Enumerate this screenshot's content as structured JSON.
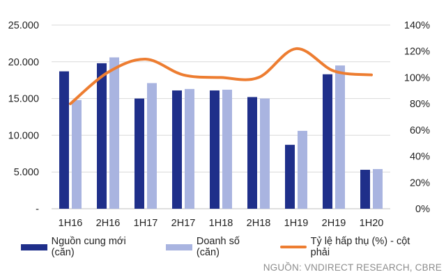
{
  "chart_data": {
    "type": "bar",
    "categories": [
      "1H16",
      "2H16",
      "1H17",
      "2H17",
      "1H18",
      "2H18",
      "1H19",
      "2H19",
      "1H20"
    ],
    "series": [
      {
        "name": "Nguồn cung mới (căn)",
        "type": "bar",
        "axis": "left",
        "color": "#1f2f8a",
        "values": [
          18700,
          19800,
          15000,
          16100,
          16100,
          15200,
          8700,
          18300,
          5300
        ]
      },
      {
        "name": "Doanh số (căn)",
        "type": "bar",
        "axis": "left",
        "color": "#a9b4e0",
        "values": [
          14800,
          20600,
          17100,
          16300,
          16200,
          15000,
          10600,
          19500,
          5400
        ]
      },
      {
        "name": "Tỷ lệ hấp thụ (%) - cột phải",
        "type": "line",
        "axis": "right",
        "color": "#ed7d31",
        "values": [
          80,
          104,
          114,
          102,
          100,
          100,
          122,
          105,
          102
        ]
      }
    ],
    "left_axis": {
      "min": 0,
      "max": 25000,
      "step": 5000,
      "tick_labels": [
        "-",
        "5.000",
        "10.000",
        "15.000",
        "20.000",
        "25.000"
      ]
    },
    "right_axis": {
      "min": 0,
      "max": 140,
      "step": 20,
      "tick_labels": [
        "0%",
        "20%",
        "40%",
        "60%",
        "80%",
        "100%",
        "120%",
        "140%"
      ]
    },
    "gridlines": true
  },
  "legend": [
    {
      "label": "Nguồn cung mới (căn)",
      "color": "#1f2f8a",
      "kind": "bar"
    },
    {
      "label": "Doanh số (căn)",
      "color": "#a9b4e0",
      "kind": "bar"
    },
    {
      "label": "Tỷ lệ hấp thụ (%) - cột phải",
      "color": "#ed7d31",
      "kind": "line"
    }
  ],
  "source": "NGUỒN: VNDIRECT RESEARCH, CBRE"
}
